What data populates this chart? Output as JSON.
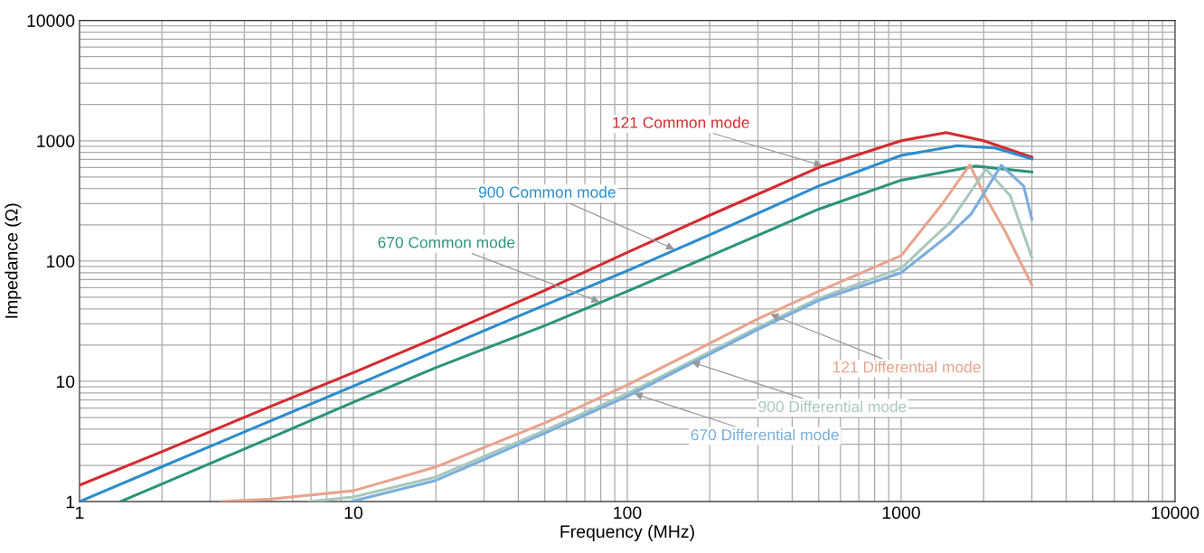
{
  "chart_data": {
    "type": "line",
    "xlabel": "Frequency (MHz)",
    "ylabel": "Impedance (Ω)",
    "log": "xy",
    "grid": true,
    "legend": false,
    "marker": "none",
    "line_style": "solid",
    "xlim": [
      1,
      10000
    ],
    "ylim": [
      1,
      10000
    ],
    "xticks": [
      1,
      10,
      100,
      1000,
      10000
    ],
    "yticks": [
      1,
      10,
      100,
      1000,
      10000
    ],
    "series": [
      {
        "name": "121 Common mode",
        "color": "#d42a2f",
        "x": [
          1,
          2,
          5,
          10,
          20,
          50,
          100,
          200,
          500,
          1000,
          1460,
          2000,
          3000
        ],
        "values": [
          1.37,
          2.6,
          6.2,
          11.8,
          23,
          57,
          118,
          240,
          600,
          1000,
          1170,
          1000,
          730
        ]
      },
      {
        "name": "900 Common mode",
        "color": "#2a8ccc",
        "x": [
          1,
          2,
          5,
          10,
          20,
          50,
          100,
          200,
          500,
          1000,
          1600,
          2200,
          3000
        ],
        "values": [
          1,
          1.95,
          4.7,
          9.1,
          17.8,
          43,
          83,
          165,
          420,
          755,
          910,
          870,
          705
        ]
      },
      {
        "name": "670 Common mode",
        "color": "#2a9478",
        "x": [
          1.41,
          2,
          5,
          10,
          20,
          50,
          100,
          200,
          500,
          1000,
          1870,
          3000
        ],
        "values": [
          1,
          1.4,
          3.4,
          6.7,
          13,
          29,
          56,
          110,
          270,
          470,
          615,
          550
        ]
      },
      {
        "name": "121 Differential mode",
        "color": "#e8a48c",
        "x": [
          3.3,
          5,
          10,
          20,
          50,
          100,
          300,
          500,
          1000,
          1400,
          1780,
          2000,
          2400,
          3000
        ],
        "values": [
          1,
          1.05,
          1.23,
          1.94,
          4.5,
          9.3,
          33,
          56,
          111,
          290,
          630,
          365,
          175,
          63
        ]
      },
      {
        "name": "900 Differential mode",
        "color": "#a8c8bc",
        "x": [
          6.9,
          10,
          20,
          50,
          100,
          300,
          500,
          1000,
          1500,
          2040,
          2500,
          3000
        ],
        "values": [
          1,
          1.09,
          1.6,
          3.9,
          7.9,
          28,
          49,
          87,
          208,
          580,
          350,
          107
        ]
      },
      {
        "name": "670 Differential mode",
        "color": "#7aaedc",
        "x": [
          9.8,
          20,
          50,
          100,
          300,
          500,
          1000,
          1500,
          1800,
          2320,
          2800,
          3000
        ],
        "values": [
          1,
          1.5,
          3.7,
          7.5,
          27,
          47,
          80,
          166,
          246,
          625,
          420,
          222
        ]
      }
    ]
  }
}
